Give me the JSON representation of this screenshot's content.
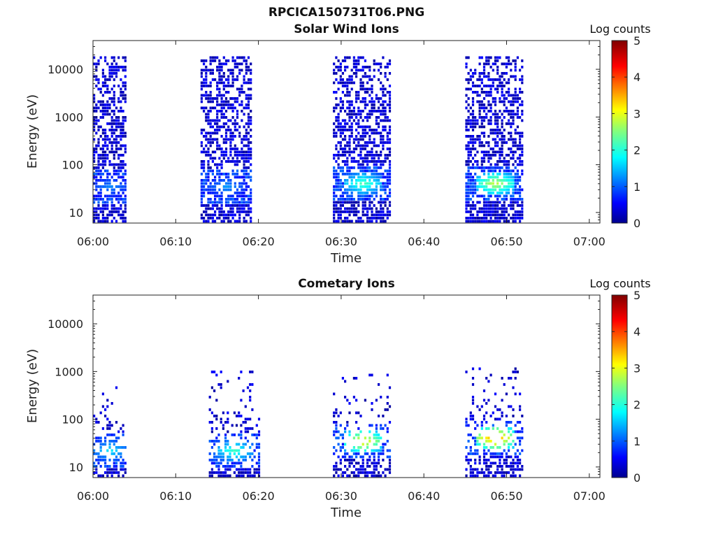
{
  "figure_title": "RPCICA150731T06.PNG",
  "chart_data": [
    {
      "type": "heatmap",
      "title": "Solar Wind Ions",
      "xlabel": "Time",
      "ylabel": "Energy (eV)",
      "x_ticks": [
        "06:00",
        "06:10",
        "06:20",
        "06:30",
        "06:40",
        "06:50",
        "07:00"
      ],
      "y_ticks": [
        "10",
        "100",
        "1000",
        "10000"
      ],
      "y_scale": "log",
      "ylim": [
        6,
        40000
      ],
      "colorbar": {
        "title": "Log counts",
        "ticks": [
          "0",
          "1",
          "2",
          "3",
          "4",
          "5"
        ],
        "range": [
          0,
          5
        ]
      },
      "bursts": [
        {
          "start": "06:00",
          "end": "06:04",
          "emax_eV": 15000,
          "peak_log_counts": 1.3,
          "peak_energy_eV": 30
        },
        {
          "start": "06:13",
          "end": "06:19",
          "emax_eV": 15000,
          "peak_log_counts": 1.4,
          "peak_energy_eV": 30
        },
        {
          "start": "06:29",
          "end": "06:36",
          "emax_eV": 15000,
          "peak_log_counts": 2.3,
          "peak_energy_eV": 35
        },
        {
          "start": "06:45",
          "end": "06:52",
          "emax_eV": 15000,
          "peak_log_counts": 2.9,
          "peak_energy_eV": 35
        }
      ]
    },
    {
      "type": "heatmap",
      "title": "Cometary Ions",
      "xlabel": "Time",
      "ylabel": "Energy (eV)",
      "x_ticks": [
        "06:00",
        "06:10",
        "06:20",
        "06:30",
        "06:40",
        "06:50",
        "07:00"
      ],
      "y_ticks": [
        "10",
        "100",
        "1000",
        "10000"
      ],
      "y_scale": "log",
      "ylim": [
        6,
        40000
      ],
      "colorbar": {
        "title": "Log counts",
        "ticks": [
          "0",
          "1",
          "2",
          "3",
          "4",
          "5"
        ],
        "range": [
          0,
          5
        ]
      },
      "bursts": [
        {
          "start": "06:00",
          "end": "06:04",
          "emax_eV": 500,
          "peak_log_counts": 1.8,
          "peak_energy_eV": 20
        },
        {
          "start": "06:14",
          "end": "06:20",
          "emax_eV": 900,
          "peak_log_counts": 2.2,
          "peak_energy_eV": 20
        },
        {
          "start": "06:29",
          "end": "06:36",
          "emax_eV": 800,
          "peak_log_counts": 3.3,
          "peak_energy_eV": 30
        },
        {
          "start": "06:45",
          "end": "06:52",
          "emax_eV": 1000,
          "peak_log_counts": 3.8,
          "peak_energy_eV": 35
        }
      ]
    }
  ]
}
